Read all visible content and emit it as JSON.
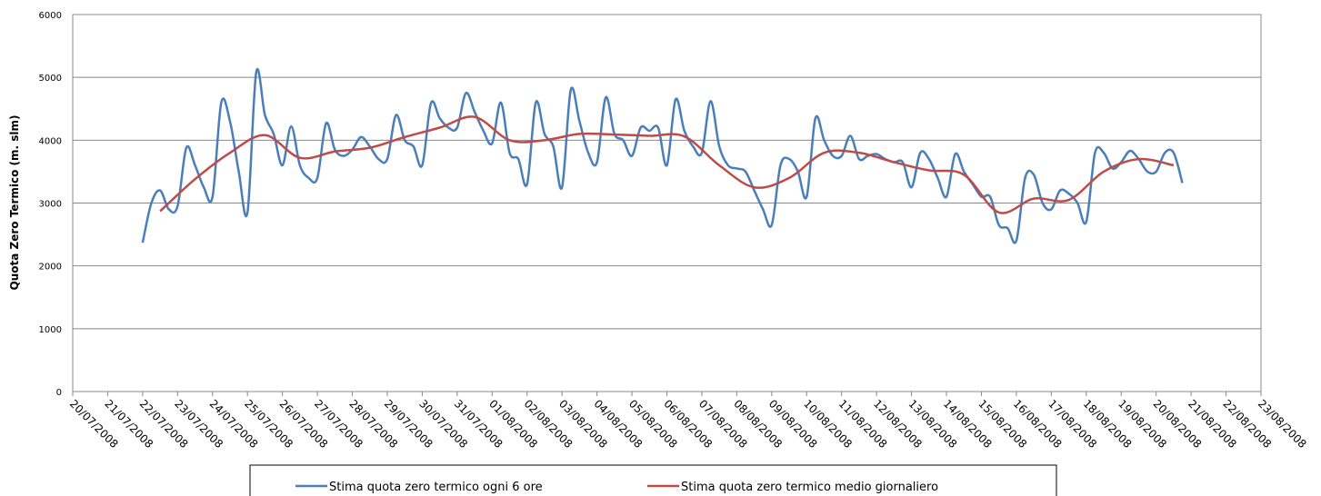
{
  "chart_data": {
    "type": "line",
    "y_label": "Quota Zero Termico (m. slm)",
    "xlim": [
      0,
      34
    ],
    "xticks": [
      {
        "value": 0,
        "label": "20/07/2008"
      },
      {
        "value": 1,
        "label": "21/07/2008"
      },
      {
        "value": 2,
        "label": "22/07/2008"
      },
      {
        "value": 3,
        "label": "23/07/2008"
      },
      {
        "value": 4,
        "label": "24/07/2008"
      },
      {
        "value": 5,
        "label": "25/07/2008"
      },
      {
        "value": 6,
        "label": "26/07/2008"
      },
      {
        "value": 7,
        "label": "27/07/2008"
      },
      {
        "value": 8,
        "label": "28/07/2008"
      },
      {
        "value": 9,
        "label": "29/07/2008"
      },
      {
        "value": 10,
        "label": "30/07/2008"
      },
      {
        "value": 11,
        "label": "31/07/2008"
      },
      {
        "value": 12,
        "label": "01/08/2008"
      },
      {
        "value": 13,
        "label": "02/08/2008"
      },
      {
        "value": 14,
        "label": "03/08/2008"
      },
      {
        "value": 15,
        "label": "04/08/2008"
      },
      {
        "value": 16,
        "label": "05/08/2008"
      },
      {
        "value": 17,
        "label": "06/08/2008"
      },
      {
        "value": 18,
        "label": "07/08/2008"
      },
      {
        "value": 19,
        "label": "08/08/2008"
      },
      {
        "value": 20,
        "label": "09/08/2008"
      },
      {
        "value": 21,
        "label": "10/08/2008"
      },
      {
        "value": 22,
        "label": "11/08/2008"
      },
      {
        "value": 23,
        "label": "12/08/2008"
      },
      {
        "value": 24,
        "label": "13/08/2008"
      },
      {
        "value": 25,
        "label": "14/08/2008"
      },
      {
        "value": 26,
        "label": "15/08/2008"
      },
      {
        "value": 27,
        "label": "16/08/2008"
      },
      {
        "value": 28,
        "label": "17/08/2008"
      },
      {
        "value": 29,
        "label": "18/08/2008"
      },
      {
        "value": 30,
        "label": "19/08/2008"
      },
      {
        "value": 31,
        "label": "20/08/2008"
      },
      {
        "value": 32,
        "label": "21/08/2008"
      },
      {
        "value": 33,
        "label": "22/08/2008"
      },
      {
        "value": 34,
        "label": "23/08/2008"
      }
    ],
    "ylim": [
      0,
      6000
    ],
    "yticks": [
      0,
      1000,
      2000,
      3000,
      4000,
      5000,
      6000
    ],
    "grid": true,
    "legend": "bottom",
    "series": [
      {
        "name": "Stima quota zero termico ogni 6 ore",
        "color": "#4a7ebb",
        "x": [
          2,
          2.25,
          2.5,
          2.75,
          3,
          3.25,
          3.5,
          3.75,
          4,
          4.25,
          4.5,
          4.75,
          5,
          5.25,
          5.5,
          5.75,
          6,
          6.25,
          6.5,
          6.75,
          7,
          7.25,
          7.5,
          7.75,
          8,
          8.25,
          8.5,
          8.75,
          9,
          9.25,
          9.5,
          9.75,
          10,
          10.25,
          10.5,
          10.75,
          11,
          11.25,
          11.5,
          11.75,
          12,
          12.25,
          12.5,
          12.75,
          13,
          13.25,
          13.5,
          13.75,
          14,
          14.25,
          14.5,
          14.75,
          15,
          15.25,
          15.5,
          15.75,
          16,
          16.25,
          16.5,
          16.75,
          17,
          17.25,
          17.5,
          17.75,
          18,
          18.25,
          18.5,
          18.75,
          19,
          19.25,
          19.5,
          19.75,
          20,
          20.25,
          20.5,
          20.75,
          21,
          21.25,
          21.5,
          21.75,
          22,
          22.25,
          22.5,
          22.75,
          23,
          23.25,
          23.5,
          23.75,
          24,
          24.25,
          24.5,
          24.75,
          25,
          25.25,
          25.5,
          25.75,
          26,
          26.25,
          26.5,
          26.75,
          27,
          27.25,
          27.5,
          27.75,
          28,
          28.25,
          28.5,
          28.75,
          29,
          29.25,
          29.5,
          29.75,
          30,
          30.25,
          30.5,
          30.75,
          31,
          31.25,
          31.5,
          31.75
        ],
        "values": [
          2370,
          3000,
          3200,
          2900,
          2950,
          3880,
          3600,
          3250,
          3100,
          4600,
          4300,
          3500,
          2850,
          5080,
          4400,
          4100,
          3600,
          4220,
          3600,
          3400,
          3400,
          4270,
          3850,
          3750,
          3850,
          4050,
          3900,
          3700,
          3700,
          4400,
          4000,
          3900,
          3600,
          4590,
          4350,
          4200,
          4200,
          4750,
          4450,
          4150,
          3950,
          4600,
          3800,
          3700,
          3300,
          4600,
          4100,
          3900,
          3250,
          4800,
          4300,
          3800,
          3650,
          4680,
          4100,
          4000,
          3750,
          4200,
          4150,
          4200,
          3600,
          4650,
          4150,
          3900,
          3800,
          4620,
          3900,
          3600,
          3550,
          3500,
          3200,
          2900,
          2650,
          3600,
          3700,
          3500,
          3100,
          4350,
          4000,
          3750,
          3750,
          4070,
          3700,
          3750,
          3780,
          3700,
          3650,
          3650,
          3250,
          3800,
          3700,
          3400,
          3100,
          3780,
          3500,
          3300,
          3100,
          3100,
          2650,
          2600,
          2400,
          3400,
          3450,
          3000,
          2900,
          3200,
          3150,
          3000,
          2700,
          3800,
          3800,
          3550,
          3650,
          3830,
          3700,
          3500,
          3500,
          3800,
          3800,
          3320
        ]
      },
      {
        "name": "Stima quota zero termico medio giornaliero",
        "color": "#be4b48",
        "x": [
          2.5,
          3.5,
          4.5,
          5.5,
          6.5,
          7.5,
          8.5,
          9.5,
          10.5,
          11.5,
          12.5,
          13.5,
          14.5,
          15.5,
          16.5,
          17.5,
          18.5,
          19.5,
          20.5,
          21.5,
          22.5,
          23.5,
          24.5,
          25.5,
          26.5,
          27.5,
          28.5,
          29.5,
          30.5,
          31.5
        ],
        "values": [
          2870,
          3380,
          3800,
          4080,
          3720,
          3820,
          3880,
          4050,
          4200,
          4370,
          4000,
          4000,
          4100,
          4090,
          4070,
          4060,
          3600,
          3250,
          3400,
          3800,
          3800,
          3650,
          3520,
          3450,
          2850,
          3070,
          3050,
          3500,
          3700,
          3600
        ]
      }
    ]
  }
}
